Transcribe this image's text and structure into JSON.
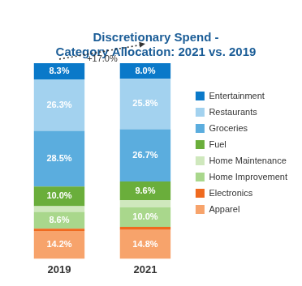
{
  "chart_data": {
    "type": "bar",
    "title": [
      "Discretionary Spend -",
      "Category Allocation: 2021 vs. 2019"
    ],
    "annotation": "+17.0%",
    "categories": [
      "2019",
      "2021"
    ],
    "stacked": true,
    "data_labels": true,
    "tick_labels": "x",
    "grid": false,
    "legend": "right",
    "ylim": [
      0,
      100
    ],
    "series": [
      {
        "name": "Apparel",
        "color": "#f7a36b",
        "values": [
          14.2,
          14.8
        ],
        "value_labels": [
          "14.2%",
          "14.8%"
        ]
      },
      {
        "name": "Electronics",
        "color": "#ef6a1f",
        "values": [
          1.2,
          1.5
        ],
        "value_labels": [
          null,
          null
        ]
      },
      {
        "name": "Home Improvement",
        "color": "#a9d78c",
        "values": [
          8.6,
          10.0
        ],
        "value_labels": [
          "8.6%",
          "10.0%"
        ]
      },
      {
        "name": "Home Maintenance",
        "color": "#cfe8bd",
        "values": [
          2.9,
          3.6
        ],
        "value_labels": [
          null,
          null
        ]
      },
      {
        "name": "Fuel",
        "color": "#6aae3b",
        "values": [
          10.0,
          9.6
        ],
        "value_labels": [
          "10.0%",
          "9.6%"
        ]
      },
      {
        "name": "Groceries",
        "color": "#5badde",
        "values": [
          28.5,
          26.7
        ],
        "value_labels": [
          "28.5%",
          "26.7%"
        ]
      },
      {
        "name": "Restaurants",
        "color": "#a3d2ef",
        "values": [
          26.3,
          25.8
        ],
        "value_labels": [
          "26.3%",
          "25.8%"
        ]
      },
      {
        "name": "Entertainment",
        "color": "#0a79c9",
        "values": [
          8.3,
          8.0
        ],
        "value_labels": [
          "8.3%",
          "8.0%"
        ]
      }
    ]
  }
}
